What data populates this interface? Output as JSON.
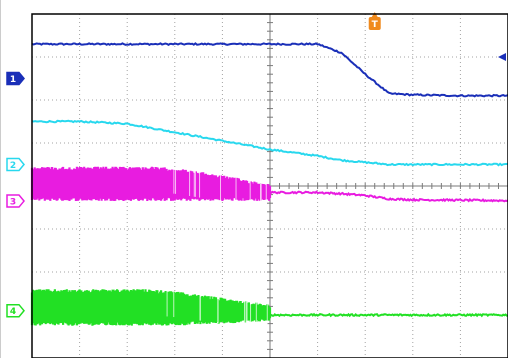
{
  "chart_data": {
    "type": "line",
    "grid": true,
    "divisions": {
      "x": 10,
      "y": 8
    },
    "x": [
      0,
      1,
      2,
      2.5,
      3,
      4,
      5,
      6,
      6.5,
      7,
      7.5,
      8,
      9,
      10
    ],
    "series": [
      {
        "channel_label": "1",
        "color": "#1a2fb8",
        "values": [
          7.3,
          7.3,
          7.3,
          7.3,
          7.3,
          7.3,
          7.3,
          7.3,
          7.1,
          6.6,
          6.15,
          6.12,
          6.1,
          6.1
        ]
      },
      {
        "channel_label": "2",
        "color": "#28d8ee",
        "values": [
          5.5,
          5.5,
          5.45,
          5.35,
          5.25,
          5.05,
          4.85,
          4.7,
          4.6,
          4.55,
          4.5,
          4.5,
          4.5,
          4.5
        ]
      },
      {
        "channel_label": "3",
        "color": "#e81ce0",
        "style": "noise-envelope",
        "envelope_upper": [
          4.45,
          4.45,
          4.45,
          4.45,
          4.42,
          4.25,
          4.05
        ],
        "envelope_lower": [
          3.65,
          3.65,
          3.65,
          3.65,
          3.65,
          3.65,
          3.65
        ],
        "envelope_x": [
          0,
          1,
          2,
          2.5,
          3,
          4,
          5
        ],
        "values_after": [
          3.85,
          3.85,
          3.82,
          3.78,
          3.7,
          3.68,
          3.67,
          3.66
        ],
        "x_after": [
          5,
          6,
          6.5,
          7,
          7.5,
          8,
          9,
          10
        ]
      },
      {
        "channel_label": "4",
        "color": "#22e024",
        "style": "noise-envelope",
        "envelope_upper": [
          1.6,
          1.6,
          1.6,
          1.6,
          1.55,
          1.4,
          1.25
        ],
        "envelope_lower": [
          0.75,
          0.75,
          0.75,
          0.75,
          0.75,
          0.8,
          0.85
        ],
        "envelope_x": [
          0,
          1,
          2,
          2.5,
          3,
          4,
          5
        ],
        "values_after": [
          1.0,
          1.0,
          1.0,
          1.0,
          1.0,
          1.0,
          1.0,
          1.0
        ],
        "x_after": [
          5,
          6,
          6.5,
          7,
          7.5,
          8,
          9,
          10
        ]
      }
    ],
    "channel_markers": [
      {
        "label": "1",
        "level": 6.5,
        "color": "#1a2fb8",
        "filled": true
      },
      {
        "label": "2",
        "level": 4.5,
        "color": "#28d8ee",
        "filled": false
      },
      {
        "label": "3",
        "level": 3.65,
        "color": "#e81ce0",
        "filled": false
      },
      {
        "label": "4",
        "level": 1.1,
        "color": "#22e024",
        "filled": false
      }
    ],
    "trigger_marker": {
      "label": "T",
      "x": 7.2,
      "color": "#f08a1c"
    },
    "trigger_level_arrow": {
      "level": 7.0,
      "color": "#1a2fb8"
    }
  }
}
